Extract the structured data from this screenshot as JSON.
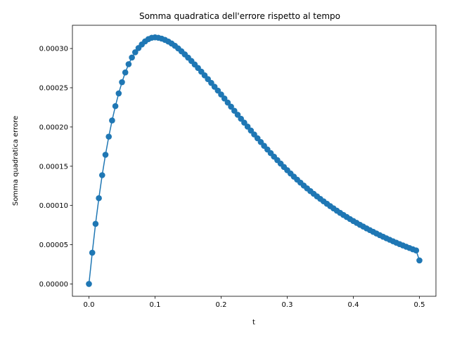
{
  "chart_data": {
    "type": "line",
    "title": "Somma quadratica dell'errore rispetto al tempo",
    "xlabel": "t",
    "ylabel": "Somma quadratica errore",
    "xlim": [
      -0.025,
      0.525
    ],
    "ylim": [
      -1.57e-05,
      0.0003296
    ],
    "xticks": [
      0.0,
      0.1,
      0.2,
      0.3,
      0.4,
      0.5
    ],
    "xtick_labels": [
      "0.0",
      "0.1",
      "0.2",
      "0.3",
      "0.4",
      "0.5"
    ],
    "yticks": [
      0.0,
      5e-05,
      0.0001,
      0.00015,
      0.0002,
      0.00025,
      0.0003
    ],
    "ytick_labels": [
      "0.00000",
      "0.00005",
      "0.00010",
      "0.00015",
      "0.00020",
      "0.00025",
      "0.00030"
    ],
    "grid": false,
    "marker": "circle",
    "color": "#1f77b4",
    "series": [
      {
        "x": [
          0.0,
          0.005,
          0.01,
          0.015,
          0.02,
          0.025,
          0.03,
          0.035,
          0.04,
          0.045,
          0.05,
          0.055,
          0.06,
          0.065,
          0.07,
          0.075,
          0.08,
          0.085,
          0.09,
          0.095,
          0.1,
          0.105,
          0.11,
          0.115,
          0.12,
          0.125,
          0.13,
          0.135,
          0.14,
          0.145,
          0.15,
          0.155,
          0.16,
          0.165,
          0.17,
          0.175,
          0.18,
          0.185,
          0.19,
          0.195,
          0.2,
          0.205,
          0.21,
          0.215,
          0.22,
          0.225,
          0.23,
          0.235,
          0.24,
          0.245,
          0.25,
          0.255,
          0.26,
          0.265,
          0.27,
          0.275,
          0.28,
          0.285,
          0.29,
          0.295,
          0.3,
          0.305,
          0.31,
          0.315,
          0.32,
          0.325,
          0.33,
          0.335,
          0.34,
          0.345,
          0.35,
          0.355,
          0.36,
          0.365,
          0.37,
          0.375,
          0.38,
          0.385,
          0.39,
          0.395,
          0.4,
          0.405,
          0.41,
          0.415,
          0.42,
          0.425,
          0.43,
          0.435,
          0.44,
          0.445,
          0.45,
          0.455,
          0.46,
          0.465,
          0.47,
          0.475,
          0.48,
          0.485,
          0.49,
          0.495,
          0.5
        ],
        "y": [
          0.0,
          3.98e-05,
          7.66e-05,
          0.0001093,
          0.0001386,
          0.0001646,
          0.0001877,
          0.0002083,
          0.0002266,
          0.0002428,
          0.0002571,
          0.0002695,
          0.00028,
          0.0002885,
          0.0002952,
          0.0003006,
          0.0003052,
          0.0003091,
          0.000312,
          0.0003137,
          0.0003142,
          0.0003137,
          0.0003126,
          0.000311,
          0.0003089,
          0.0003064,
          0.0003035,
          0.0003001,
          0.0002964,
          0.0002925,
          0.0002884,
          0.0002841,
          0.0002797,
          0.0002752,
          0.0002705,
          0.0002658,
          0.000261,
          0.0002562,
          0.0002513,
          0.0002464,
          0.0002414,
          0.0002363,
          0.0002311,
          0.0002259,
          0.0002207,
          0.0002156,
          0.0002105,
          0.0002055,
          0.0002005,
          0.0001955,
          0.0001905,
          0.0001856,
          0.0001808,
          0.000176,
          0.0001713,
          0.0001667,
          0.0001622,
          0.0001578,
          0.0001534,
          0.0001491,
          0.0001449,
          0.0001408,
          0.0001368,
          0.0001329,
          0.0001291,
          0.0001254,
          0.0001218,
          0.0001183,
          0.0001149,
          0.0001116,
          0.0001084,
          0.0001053,
          0.0001022,
          9.92e-05,
          9.63e-05,
          9.34e-05,
          9.06e-05,
          8.79e-05,
          8.53e-05,
          8.27e-05,
          8.02e-05,
          7.78e-05,
          7.54e-05,
          7.31e-05,
          7.08e-05,
          6.86e-05,
          6.64e-05,
          6.43e-05,
          6.22e-05,
          6.02e-05,
          5.82e-05,
          5.63e-05,
          5.44e-05,
          5.26e-05,
          5.08e-05,
          4.91e-05,
          4.74e-05,
          4.58e-05,
          4.42e-05,
          4.27e-05,
          3e-05
        ]
      }
    ]
  }
}
